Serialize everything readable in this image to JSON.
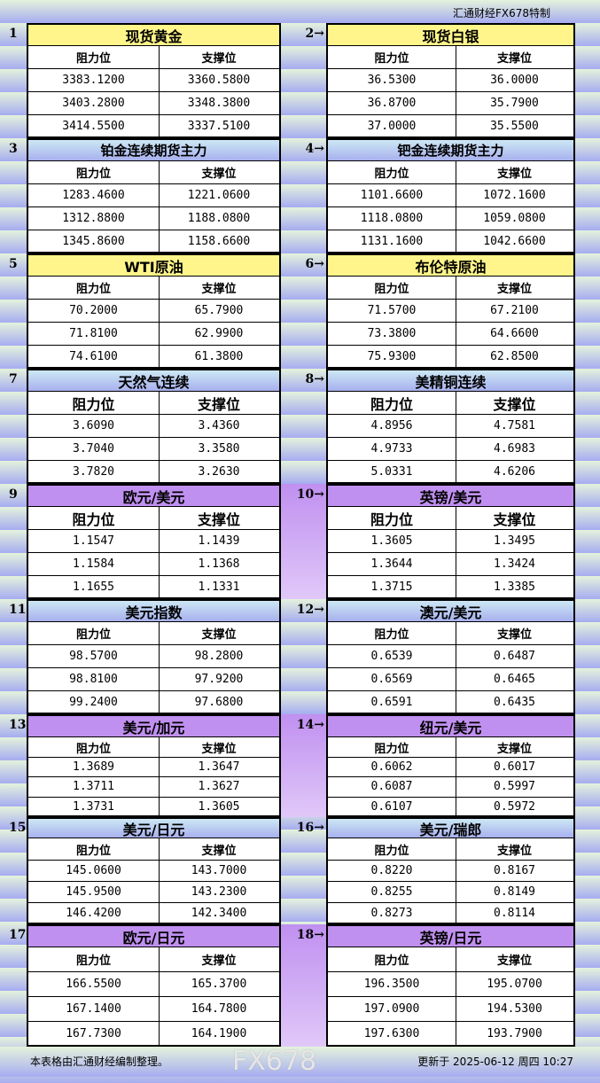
{
  "header": {
    "brand": "汇通财经FX678特制"
  },
  "col_headers": {
    "resistance": "阻力位",
    "support": "支撑位"
  },
  "colors": {
    "yellow": "#fff58a",
    "blue": "#b8d8f0",
    "purple": "#c090f0"
  },
  "sections": [
    {
      "num": "1",
      "title": "现货黄金",
      "color": "yellow",
      "rows": [
        [
          "3383.1200",
          "3360.5800"
        ],
        [
          "3403.2800",
          "3348.3800"
        ],
        [
          "3414.5500",
          "3337.5100"
        ]
      ]
    },
    {
      "num": "2→",
      "title": "现货白银",
      "color": "yellow",
      "rows": [
        [
          "36.5300",
          "36.0000"
        ],
        [
          "36.8700",
          "35.7900"
        ],
        [
          "37.0000",
          "35.5500"
        ]
      ]
    },
    {
      "num": "3",
      "title": "铂金连续期货主力",
      "color": "blue",
      "rows": [
        [
          "1283.4600",
          "1221.0600"
        ],
        [
          "1312.8800",
          "1188.0800"
        ],
        [
          "1345.8600",
          "1158.6600"
        ]
      ]
    },
    {
      "num": "4→",
      "title": "钯金连续期货主力",
      "color": "blue",
      "rows": [
        [
          "1101.6600",
          "1072.1600"
        ],
        [
          "1118.0800",
          "1059.0800"
        ],
        [
          "1131.1600",
          "1042.6600"
        ]
      ]
    },
    {
      "num": "5",
      "title": "WTI原油",
      "color": "yellow",
      "rows": [
        [
          "70.2000",
          "65.7900"
        ],
        [
          "71.8100",
          "62.9900"
        ],
        [
          "74.6100",
          "61.3800"
        ]
      ]
    },
    {
      "num": "6→",
      "title": "布伦特原油",
      "color": "yellow",
      "rows": [
        [
          "71.5700",
          "67.2100"
        ],
        [
          "73.3800",
          "64.6600"
        ],
        [
          "75.9300",
          "62.8500"
        ]
      ]
    },
    {
      "num": "7",
      "title": "天然气连续",
      "color": "blue",
      "rows": [
        [
          "3.6090",
          "3.4360"
        ],
        [
          "3.7040",
          "3.3580"
        ],
        [
          "3.7820",
          "3.2630"
        ]
      ]
    },
    {
      "num": "8→",
      "title": "美精铜连续",
      "color": "blue",
      "rows": [
        [
          "4.8956",
          "4.7581"
        ],
        [
          "4.9733",
          "4.6983"
        ],
        [
          "5.0331",
          "4.6206"
        ]
      ]
    },
    {
      "num": "9",
      "title": "欧元/美元",
      "color": "purple",
      "rows": [
        [
          "1.1547",
          "1.1439"
        ],
        [
          "1.1584",
          "1.1368"
        ],
        [
          "1.1655",
          "1.1331"
        ]
      ]
    },
    {
      "num": "10→",
      "title": "英镑/美元",
      "color": "purple",
      "rows": [
        [
          "1.3605",
          "1.3495"
        ],
        [
          "1.3644",
          "1.3424"
        ],
        [
          "1.3715",
          "1.3385"
        ]
      ]
    },
    {
      "num": "11",
      "title": "美元指数",
      "color": "blue",
      "rows": [
        [
          "98.5700",
          "98.2800"
        ],
        [
          "98.8100",
          "97.9200"
        ],
        [
          "99.2400",
          "97.6800"
        ]
      ]
    },
    {
      "num": "12→",
      "title": "澳元/美元",
      "color": "blue",
      "rows": [
        [
          "0.6539",
          "0.6487"
        ],
        [
          "0.6569",
          "0.6465"
        ],
        [
          "0.6591",
          "0.6435"
        ]
      ]
    },
    {
      "num": "13",
      "title": "美元/加元",
      "color": "purple",
      "rows": [
        [
          "1.3689",
          "1.3647"
        ],
        [
          "1.3711",
          "1.3627"
        ],
        [
          "1.3731",
          "1.3605"
        ]
      ]
    },
    {
      "num": "14→",
      "title": "纽元/美元",
      "color": "purple",
      "rows": [
        [
          "0.6062",
          "0.6017"
        ],
        [
          "0.6087",
          "0.5997"
        ],
        [
          "0.6107",
          "0.5972"
        ]
      ]
    },
    {
      "num": "15",
      "title": "美元/日元",
      "color": "blue",
      "rows": [
        [
          "145.0600",
          "143.7000"
        ],
        [
          "145.9500",
          "143.2300"
        ],
        [
          "146.4200",
          "142.3400"
        ]
      ]
    },
    {
      "num": "16→",
      "title": "美元/瑞郎",
      "color": "blue",
      "rows": [
        [
          "0.8220",
          "0.8167"
        ],
        [
          "0.8255",
          "0.8149"
        ],
        [
          "0.8273",
          "0.8114"
        ]
      ]
    },
    {
      "num": "17",
      "title": "欧元/日元",
      "color": "purple",
      "rows": [
        [
          "166.5500",
          "165.3700"
        ],
        [
          "167.1400",
          "164.7800"
        ],
        [
          "167.7300",
          "164.1900"
        ]
      ]
    },
    {
      "num": "18→",
      "title": "英镑/日元",
      "color": "purple",
      "rows": [
        [
          "196.3500",
          "195.0700"
        ],
        [
          "197.0900",
          "194.5300"
        ],
        [
          "197.6300",
          "193.7900"
        ]
      ]
    }
  ],
  "footer": {
    "note": "本表格由汇通财经编制整理。",
    "updated": "更新于 2025-06-12 周四 10:27",
    "watermark": "FX678"
  }
}
